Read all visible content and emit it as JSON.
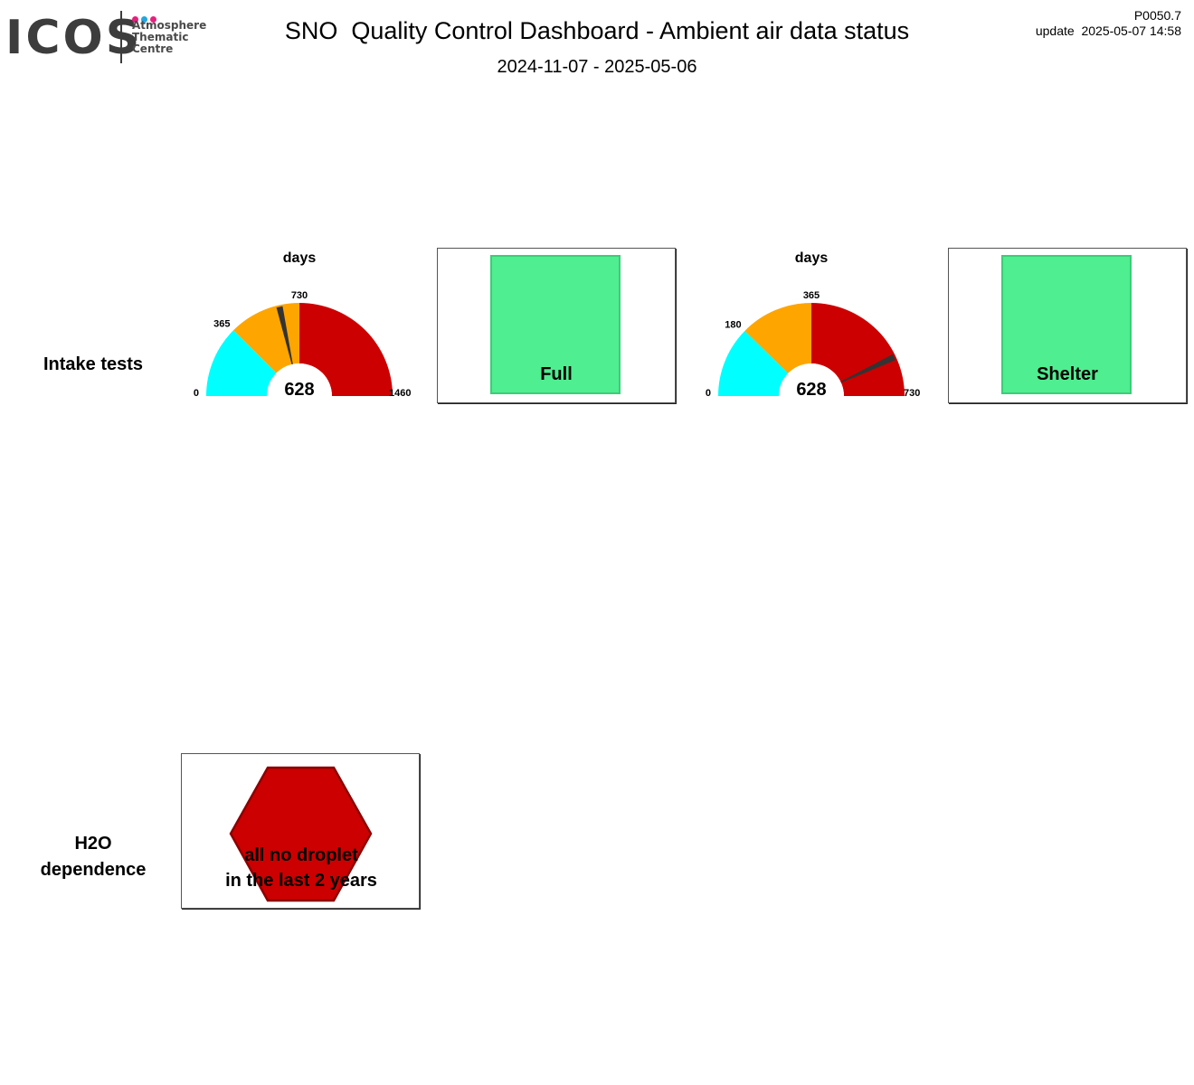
{
  "logo": {
    "name": "ICOS",
    "subtitle_lines": [
      "Atmosphere",
      "Thematic",
      "Centre"
    ],
    "dot_colors": [
      "#e6207d",
      "#22a6e1",
      "#e6207d"
    ]
  },
  "header": {
    "title": "SNO  Quality Control Dashboard - Ambient air data status",
    "period": "2024-11-07 - 2025-05-06",
    "version": "P0050.7",
    "update": "update  2025-05-07 14:58"
  },
  "rows": {
    "intake": {
      "label": "Intake tests"
    },
    "h2o": {
      "label_line1": "H2O",
      "label_line2": "dependence"
    }
  },
  "gauges": [
    {
      "unit": "days",
      "value": 628,
      "value_label": "628",
      "min": 0,
      "max": 1460,
      "bands": [
        {
          "from": 0,
          "to": 365,
          "color": "#00ffff"
        },
        {
          "from": 365,
          "to": 730,
          "color": "#ffa500"
        },
        {
          "from": 730,
          "to": 1460,
          "color": "#cc0000"
        }
      ],
      "ticks": [
        "0",
        "365",
        "730",
        "1460"
      ]
    },
    {
      "unit": "days",
      "value": 628,
      "value_label": "628",
      "min": 0,
      "max": 730,
      "bands": [
        {
          "from": 0,
          "to": 180,
          "color": "#00ffff"
        },
        {
          "from": 180,
          "to": 365,
          "color": "#ffa500"
        },
        {
          "from": 365,
          "to": 730,
          "color": "#cc0000"
        }
      ],
      "ticks": [
        "0",
        "180",
        "365",
        "730"
      ]
    }
  ],
  "status_boxes": [
    {
      "label": "Full",
      "color": "#4fee90"
    },
    {
      "label": "Shelter",
      "color": "#4fee90"
    }
  ],
  "h2o_status": {
    "line1": "all no droplet",
    "line2": "in the last 2 years",
    "color": "#cc0000"
  }
}
